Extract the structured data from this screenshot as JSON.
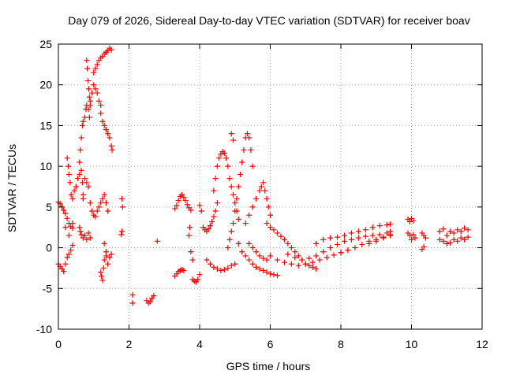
{
  "chart_data": {
    "type": "scatter",
    "title": "Day 079 of 2026, Sidereal Day-to-day VTEC variation (SDTVAR) for receiver boav",
    "xlabel": "GPS time / hours",
    "ylabel": "SDTVAR / TECUs",
    "xlim": [
      0,
      12
    ],
    "ylim": [
      -10,
      25
    ],
    "xticks": [
      0,
      2,
      4,
      6,
      8,
      10,
      12
    ],
    "yticks": [
      -10,
      -5,
      0,
      5,
      10,
      15,
      20,
      25
    ],
    "grid": true,
    "marker": "+",
    "color": "#ff0000",
    "series": [
      {
        "name": "SDTVAR",
        "points": [
          [
            0.0,
            5.6
          ],
          [
            0.05,
            5.4
          ],
          [
            0.1,
            5.0
          ],
          [
            0.15,
            4.6
          ],
          [
            0.2,
            4.2
          ],
          [
            0.25,
            3.6
          ],
          [
            0.3,
            3.0
          ],
          [
            0.35,
            2.6
          ],
          [
            0.4,
            2.4
          ],
          [
            0.0,
            -2.0
          ],
          [
            0.05,
            -2.3
          ],
          [
            0.1,
            -2.6
          ],
          [
            0.15,
            -2.9
          ],
          [
            0.2,
            -2.0
          ],
          [
            0.25,
            -1.2
          ],
          [
            0.3,
            -0.8
          ],
          [
            0.35,
            -0.3
          ],
          [
            0.4,
            0.3
          ],
          [
            0.25,
            11.0
          ],
          [
            0.28,
            10.0
          ],
          [
            0.3,
            9.0
          ],
          [
            0.33,
            8.0
          ],
          [
            0.36,
            6.5
          ],
          [
            0.4,
            6.0
          ],
          [
            0.45,
            7.0
          ],
          [
            0.5,
            7.5
          ],
          [
            0.55,
            8.5
          ],
          [
            0.6,
            9.0
          ],
          [
            0.65,
            9.5
          ],
          [
            0.68,
            8.0
          ],
          [
            0.7,
            6.5
          ],
          [
            0.2,
            2.5
          ],
          [
            0.3,
            1.5
          ],
          [
            0.4,
            3.0
          ],
          [
            0.6,
            2.5
          ],
          [
            0.62,
            2.0
          ],
          [
            0.65,
            1.6
          ],
          [
            0.7,
            1.2
          ],
          [
            0.75,
            1.5
          ],
          [
            0.8,
            1.0
          ],
          [
            0.85,
            1.8
          ],
          [
            0.9,
            1.2
          ],
          [
            0.7,
            6.0
          ],
          [
            0.75,
            8.5
          ],
          [
            0.8,
            8.0
          ],
          [
            0.85,
            7.5
          ],
          [
            0.9,
            5.5
          ],
          [
            0.95,
            4.5
          ],
          [
            1.0,
            4.0
          ],
          [
            1.05,
            3.8
          ],
          [
            1.1,
            4.5
          ],
          [
            1.15,
            5.0
          ],
          [
            1.2,
            5.5
          ],
          [
            1.25,
            6.0
          ],
          [
            1.3,
            6.5
          ],
          [
            1.35,
            5.5
          ],
          [
            1.4,
            4.5
          ],
          [
            0.6,
            10.5
          ],
          [
            0.62,
            12.0
          ],
          [
            0.65,
            13.5
          ],
          [
            0.68,
            15.0
          ],
          [
            0.7,
            15.5
          ],
          [
            0.75,
            16.0
          ],
          [
            0.78,
            17.0
          ],
          [
            0.8,
            17.5
          ],
          [
            0.85,
            17.0
          ],
          [
            0.88,
            16.0
          ],
          [
            0.9,
            18.0
          ],
          [
            0.95,
            19.0
          ],
          [
            1.0,
            20.0
          ],
          [
            1.05,
            19.5
          ],
          [
            1.1,
            19.0
          ],
          [
            1.15,
            18.0
          ],
          [
            1.2,
            17.5
          ],
          [
            0.8,
            23.0
          ],
          [
            0.82,
            22.0
          ],
          [
            0.84,
            20.5
          ],
          [
            0.86,
            19.5
          ],
          [
            0.88,
            18.5
          ],
          [
            0.9,
            17.5
          ],
          [
            1.0,
            21.5
          ],
          [
            1.05,
            22.0
          ],
          [
            1.1,
            22.5
          ],
          [
            1.15,
            23.0
          ],
          [
            1.2,
            23.3
          ],
          [
            1.25,
            23.5
          ],
          [
            1.3,
            23.8
          ],
          [
            1.35,
            24.0
          ],
          [
            1.4,
            24.2
          ],
          [
            1.45,
            24.5
          ],
          [
            1.5,
            24.3
          ],
          [
            1.2,
            16.5
          ],
          [
            1.25,
            15.5
          ],
          [
            1.3,
            15.0
          ],
          [
            1.35,
            14.5
          ],
          [
            1.4,
            14.0
          ],
          [
            1.45,
            13.5
          ],
          [
            1.5,
            12.5
          ],
          [
            1.52,
            12.0
          ],
          [
            1.2,
            -3.0
          ],
          [
            1.22,
            -3.5
          ],
          [
            1.25,
            -4.0
          ],
          [
            1.28,
            -2.5
          ],
          [
            1.3,
            -1.5
          ],
          [
            1.35,
            -1.0
          ],
          [
            1.4,
            -2.0
          ],
          [
            1.45,
            -1.2
          ],
          [
            1.5,
            -0.8
          ],
          [
            1.3,
            0.5
          ],
          [
            1.35,
            -0.5
          ],
          [
            1.8,
            6.0
          ],
          [
            1.82,
            5.0
          ],
          [
            1.8,
            2.0
          ],
          [
            1.78,
            1.6
          ],
          [
            2.1,
            -5.8
          ],
          [
            2.1,
            -6.8
          ],
          [
            2.8,
            0.8
          ],
          [
            2.5,
            -6.5
          ],
          [
            2.55,
            -6.8
          ],
          [
            2.6,
            -6.6
          ],
          [
            2.65,
            -6.2
          ],
          [
            2.7,
            -5.9
          ],
          [
            3.3,
            4.8
          ],
          [
            3.35,
            5.2
          ],
          [
            3.4,
            5.8
          ],
          [
            3.45,
            6.3
          ],
          [
            3.5,
            6.5
          ],
          [
            3.55,
            6.2
          ],
          [
            3.6,
            5.8
          ],
          [
            3.65,
            5.3
          ],
          [
            3.7,
            4.9
          ],
          [
            3.75,
            4.6
          ],
          [
            3.3,
            -3.5
          ],
          [
            3.35,
            -3.2
          ],
          [
            3.4,
            -2.9
          ],
          [
            3.45,
            -2.8
          ],
          [
            3.5,
            -2.7
          ],
          [
            3.55,
            -2.8
          ],
          [
            3.8,
            -3.9
          ],
          [
            3.85,
            -4.1
          ],
          [
            3.9,
            -4.2
          ],
          [
            3.95,
            -3.9
          ],
          [
            4.0,
            -3.3
          ],
          [
            3.75,
            -0.5
          ],
          [
            3.7,
            1.5
          ],
          [
            3.72,
            2.5
          ],
          [
            3.8,
            -1.5
          ],
          [
            4.0,
            5.2
          ],
          [
            4.05,
            4.5
          ],
          [
            4.1,
            2.5
          ],
          [
            4.15,
            2.2
          ],
          [
            4.2,
            2.0
          ],
          [
            4.25,
            2.3
          ],
          [
            4.3,
            2.7
          ],
          [
            4.35,
            3.2
          ],
          [
            4.4,
            3.8
          ],
          [
            4.45,
            4.5
          ],
          [
            4.5,
            5.5
          ],
          [
            4.2,
            -1.5
          ],
          [
            4.3,
            -2.0
          ],
          [
            4.4,
            -2.4
          ],
          [
            4.5,
            -2.6
          ],
          [
            4.6,
            -2.8
          ],
          [
            4.7,
            -2.7
          ],
          [
            4.8,
            -2.5
          ],
          [
            4.9,
            -2.2
          ],
          [
            5.0,
            -2.0
          ],
          [
            4.4,
            7.0
          ],
          [
            4.45,
            8.5
          ],
          [
            4.5,
            10.0
          ],
          [
            4.55,
            11.0
          ],
          [
            4.6,
            11.5
          ],
          [
            4.65,
            11.8
          ],
          [
            4.7,
            11.6
          ],
          [
            4.75,
            11.0
          ],
          [
            4.8,
            10.0
          ],
          [
            4.85,
            8.5
          ],
          [
            4.9,
            7.5
          ],
          [
            4.95,
            6.5
          ],
          [
            5.0,
            5.5
          ],
          [
            5.05,
            4.5
          ],
          [
            5.1,
            3.5
          ],
          [
            4.8,
            0.0
          ],
          [
            4.85,
            1.0
          ],
          [
            4.9,
            2.0
          ],
          [
            4.95,
            3.0
          ],
          [
            5.0,
            4.5
          ],
          [
            5.05,
            6.0
          ],
          [
            5.1,
            7.5
          ],
          [
            5.15,
            9.0
          ],
          [
            5.2,
            10.5
          ],
          [
            5.25,
            12.0
          ],
          [
            5.3,
            13.5
          ],
          [
            5.35,
            14.0
          ],
          [
            5.4,
            13.5
          ],
          [
            5.45,
            12.0
          ],
          [
            5.5,
            10.0
          ],
          [
            4.9,
            14.0
          ],
          [
            4.95,
            13.2
          ],
          [
            5.1,
            0.5
          ],
          [
            5.2,
            -0.5
          ],
          [
            5.3,
            -1.0
          ],
          [
            5.4,
            -1.5
          ],
          [
            5.5,
            -2.0
          ],
          [
            5.6,
            -2.4
          ],
          [
            5.7,
            -2.6
          ],
          [
            5.8,
            -2.8
          ],
          [
            5.9,
            -3.0
          ],
          [
            6.0,
            -3.2
          ],
          [
            6.1,
            -3.3
          ],
          [
            6.2,
            -3.4
          ],
          [
            5.3,
            3.0
          ],
          [
            5.4,
            4.0
          ],
          [
            5.5,
            5.0
          ],
          [
            5.6,
            6.0
          ],
          [
            5.7,
            7.0
          ],
          [
            5.75,
            7.5
          ],
          [
            5.8,
            8.0
          ],
          [
            5.85,
            7.0
          ],
          [
            5.9,
            6.0
          ],
          [
            5.95,
            5.0
          ],
          [
            6.0,
            4.0
          ],
          [
            5.4,
            0.5
          ],
          [
            5.5,
            0.0
          ],
          [
            5.6,
            -0.5
          ],
          [
            5.7,
            -1.0
          ],
          [
            5.8,
            -1.3
          ],
          [
            5.9,
            -1.5
          ],
          [
            5.9,
            3.0
          ],
          [
            6.0,
            2.5
          ],
          [
            6.1,
            2.2
          ],
          [
            6.2,
            1.8
          ],
          [
            6.3,
            1.4
          ],
          [
            6.4,
            1.0
          ],
          [
            6.5,
            0.5
          ],
          [
            6.6,
            0.0
          ],
          [
            6.7,
            -0.5
          ],
          [
            6.8,
            -1.0
          ],
          [
            6.9,
            -1.5
          ],
          [
            7.0,
            -2.0
          ],
          [
            7.1,
            -2.2
          ],
          [
            7.2,
            -2.4
          ],
          [
            7.3,
            -2.6
          ],
          [
            6.0,
            -1.0
          ],
          [
            6.2,
            -1.5
          ],
          [
            6.4,
            -1.8
          ],
          [
            6.6,
            -2.0
          ],
          [
            6.8,
            -2.2
          ],
          [
            7.0,
            -2.0
          ],
          [
            7.2,
            -1.8
          ],
          [
            7.4,
            -1.5
          ],
          [
            7.6,
            -1.2
          ],
          [
            7.8,
            -0.9
          ],
          [
            8.0,
            -0.6
          ],
          [
            8.2,
            -0.3
          ],
          [
            6.5,
            -0.8
          ],
          [
            6.7,
            -1.2
          ],
          [
            6.9,
            -1.5
          ],
          [
            7.1,
            -1.3
          ],
          [
            7.3,
            -1.0
          ],
          [
            7.5,
            -0.5
          ],
          [
            7.7,
            0.0
          ],
          [
            7.9,
            0.4
          ],
          [
            8.1,
            0.8
          ],
          [
            8.3,
            1.0
          ],
          [
            8.5,
            1.2
          ],
          [
            8.7,
            1.4
          ],
          [
            8.9,
            1.5
          ],
          [
            9.1,
            1.6
          ],
          [
            9.3,
            1.8
          ],
          [
            9.4,
            2.0
          ],
          [
            7.3,
            0.5
          ],
          [
            7.5,
            1.0
          ],
          [
            7.7,
            1.2
          ],
          [
            7.9,
            1.3
          ],
          [
            8.1,
            1.5
          ],
          [
            8.3,
            1.8
          ],
          [
            8.5,
            2.0
          ],
          [
            8.7,
            2.2
          ],
          [
            8.9,
            2.5
          ],
          [
            9.1,
            2.7
          ],
          [
            9.3,
            2.8
          ],
          [
            9.4,
            2.9
          ],
          [
            8.0,
            -0.6
          ],
          [
            8.2,
            -0.3
          ],
          [
            8.4,
            0.0
          ],
          [
            8.6,
            0.4
          ],
          [
            8.8,
            0.8
          ],
          [
            9.0,
            1.0
          ],
          [
            9.2,
            1.3
          ],
          [
            9.4,
            1.5
          ],
          [
            8.8,
            0.5
          ],
          [
            9.0,
            0.8
          ],
          [
            9.2,
            1.2
          ],
          [
            9.4,
            1.6
          ],
          [
            9.9,
            3.5
          ],
          [
            9.95,
            3.2
          ],
          [
            10.0,
            3.6
          ],
          [
            10.05,
            3.3
          ],
          [
            9.9,
            1.8
          ],
          [
            9.95,
            1.5
          ],
          [
            10.0,
            1.0
          ],
          [
            10.05,
            1.6
          ],
          [
            10.1,
            1.2
          ],
          [
            10.3,
            1.8
          ],
          [
            10.35,
            1.5
          ],
          [
            10.4,
            1.2
          ],
          [
            10.3,
            -0.2
          ],
          [
            10.35,
            0.1
          ],
          [
            10.8,
            2.0
          ],
          [
            10.9,
            2.3
          ],
          [
            11.0,
            1.5
          ],
          [
            11.1,
            2.0
          ],
          [
            11.2,
            1.8
          ],
          [
            11.3,
            2.2
          ],
          [
            11.4,
            2.0
          ],
          [
            11.5,
            2.4
          ],
          [
            11.6,
            2.2
          ],
          [
            10.8,
            1.0
          ],
          [
            10.9,
            0.8
          ],
          [
            11.0,
            0.5
          ],
          [
            11.1,
            0.6
          ],
          [
            11.2,
            1.0
          ],
          [
            11.3,
            0.8
          ],
          [
            11.4,
            1.2
          ],
          [
            11.5,
            1.0
          ],
          [
            11.6,
            1.3
          ]
        ]
      }
    ]
  }
}
